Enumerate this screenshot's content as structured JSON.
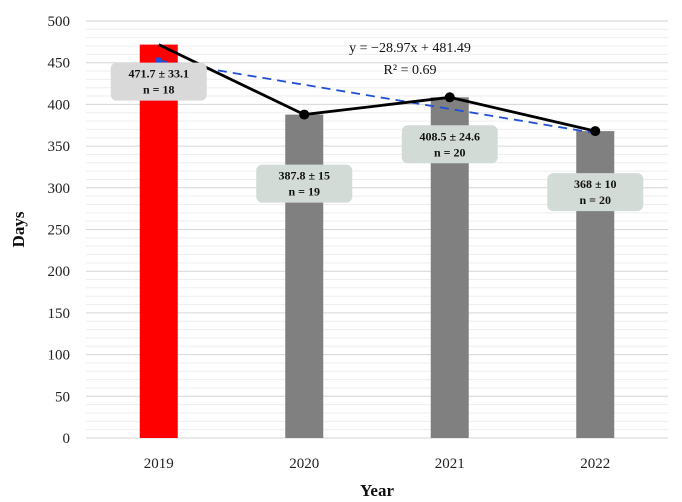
{
  "chart_data": {
    "type": "bar",
    "title": "",
    "xlabel": "Year",
    "ylabel": "Days",
    "ylim": [
      0,
      500
    ],
    "yticks": [
      0,
      50,
      100,
      150,
      200,
      250,
      300,
      350,
      400,
      450,
      500
    ],
    "grid": true,
    "categories": [
      "2019",
      "2020",
      "2021",
      "2022"
    ],
    "values": [
      471.7,
      387.8,
      408.5,
      368
    ],
    "bar_colors": [
      "#ff0000",
      "#808080",
      "#808080",
      "#808080"
    ],
    "line_color": "#000000",
    "trend_color": "#1f4fd6",
    "annotations": [
      {
        "mean": "471.7",
        "sd": "33.1",
        "n_label": "n = 18"
      },
      {
        "mean": "387.8",
        "sd": "15",
        "n_label": "n = 19"
      },
      {
        "mean": "408.5",
        "sd": "24.6",
        "n_label": "n = 20"
      },
      {
        "mean": "368",
        "sd": "10",
        "n_label": "n = 20"
      }
    ],
    "trendline": {
      "slope": -28.97,
      "intercept": 481.49,
      "equation": "y = −28.97x + 481.49",
      "r2": "R² = 0.69"
    }
  }
}
